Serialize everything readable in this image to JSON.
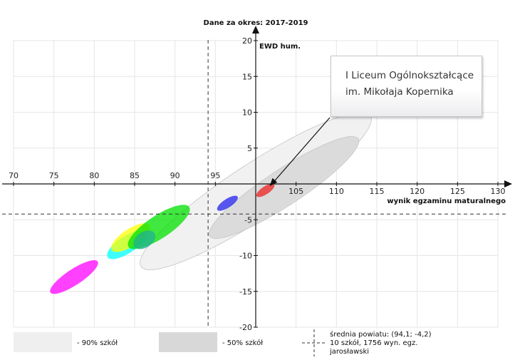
{
  "chart_data": {
    "type": "scatter",
    "title": "Dane za okres: 2017-2019",
    "xlabel": "wynik egzaminu maturalnego",
    "ylabel": "EWD hum.",
    "xlim": [
      70,
      130
    ],
    "ylim": [
      -20,
      20
    ],
    "x_ticks": [
      70,
      75,
      80,
      85,
      90,
      95,
      105,
      110,
      115,
      120,
      125,
      130
    ],
    "y_ticks": [
      20,
      15,
      10,
      5,
      -5,
      -10,
      -15,
      -20
    ],
    "grid": true,
    "reference_lines": {
      "mean_x": 94.1,
      "mean_y": -4.2
    },
    "bands": [
      {
        "name": "90% szkół",
        "color": "#efefef",
        "center": [
          100,
          -1
        ],
        "semi_major_x": 17,
        "semi_minor": 3.8
      },
      {
        "name": "50% szkół",
        "color": "#d8d8d8",
        "center": [
          103.5,
          -0.5
        ],
        "semi_major_x": 11,
        "semi_minor": 2.5
      }
    ],
    "schools": [
      {
        "color": "#ff00ff",
        "center": [
          77.5,
          -13
        ],
        "semi_major_x": 3.5,
        "semi_minor": 1.1
      },
      {
        "color": "#00ffff",
        "center": [
          84,
          -8.5
        ],
        "semi_major_x": 2.8,
        "semi_minor": 1.2
      },
      {
        "color": "#ffff00",
        "center": [
          84.5,
          -7.5
        ],
        "semi_major_x": 2.8,
        "semi_minor": 1.2
      },
      {
        "color": "#00e000",
        "center": [
          88,
          -6
        ],
        "semi_major_x": 4.5,
        "semi_minor": 1.6
      },
      {
        "color": "#20b090",
        "center": [
          86.2,
          -7.8
        ],
        "semi_major_x": 1.5,
        "semi_minor": 1.1
      },
      {
        "color": "#2222ee",
        "center": [
          96.5,
          -2.7
        ],
        "semi_major_x": 1.5,
        "semi_minor": 0.6
      },
      {
        "color": "#ee2222",
        "center": [
          101.2,
          -0.9
        ],
        "semi_major_x": 1.3,
        "semi_minor": 0.55,
        "highlighted": true
      }
    ],
    "callout": {
      "line1": "I Liceum Ogólnokształcące",
      "line2": "im. Mikołaja Kopernika"
    },
    "legend": {
      "band90": "- 90% szkół",
      "band50": "- 50% szkół",
      "mean_line1": "średnia powiatu: (94,1; -4,2)",
      "mean_line2": "10 szkół, 1756 wyn. egz.",
      "mean_line3": "jarosławski"
    }
  }
}
